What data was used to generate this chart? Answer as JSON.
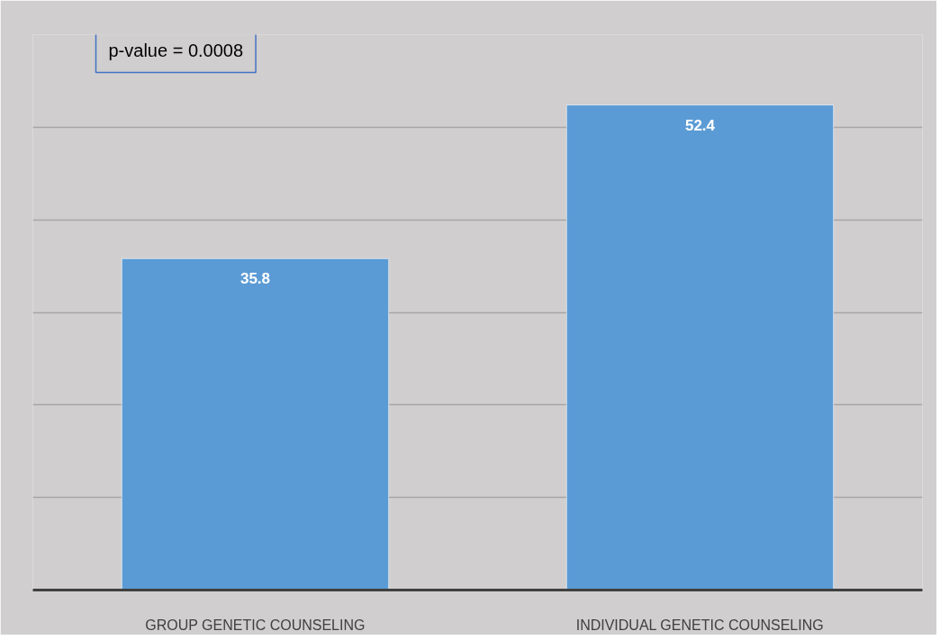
{
  "chart_data": {
    "type": "bar",
    "categories": [
      "GROUP GENETIC COUNSELING",
      "INDIVIDUAL GENETIC COUNSELING"
    ],
    "values": [
      35.8,
      52.4
    ],
    "color": "#5b9bd5",
    "data_labels": true,
    "ylim": [
      0,
      60
    ],
    "yticks": [
      {
        "value": 0,
        "label": null
      },
      {
        "value": 10,
        "label": null
      },
      {
        "value": 20,
        "label": null
      },
      {
        "value": 30,
        "label": null
      },
      {
        "value": 40,
        "label": null
      },
      {
        "value": 50,
        "label": null
      },
      {
        "value": 60,
        "label": null
      }
    ],
    "tick_labels": "x",
    "grid": "y",
    "annotations": [
      "p-value = 0.0008"
    ]
  }
}
